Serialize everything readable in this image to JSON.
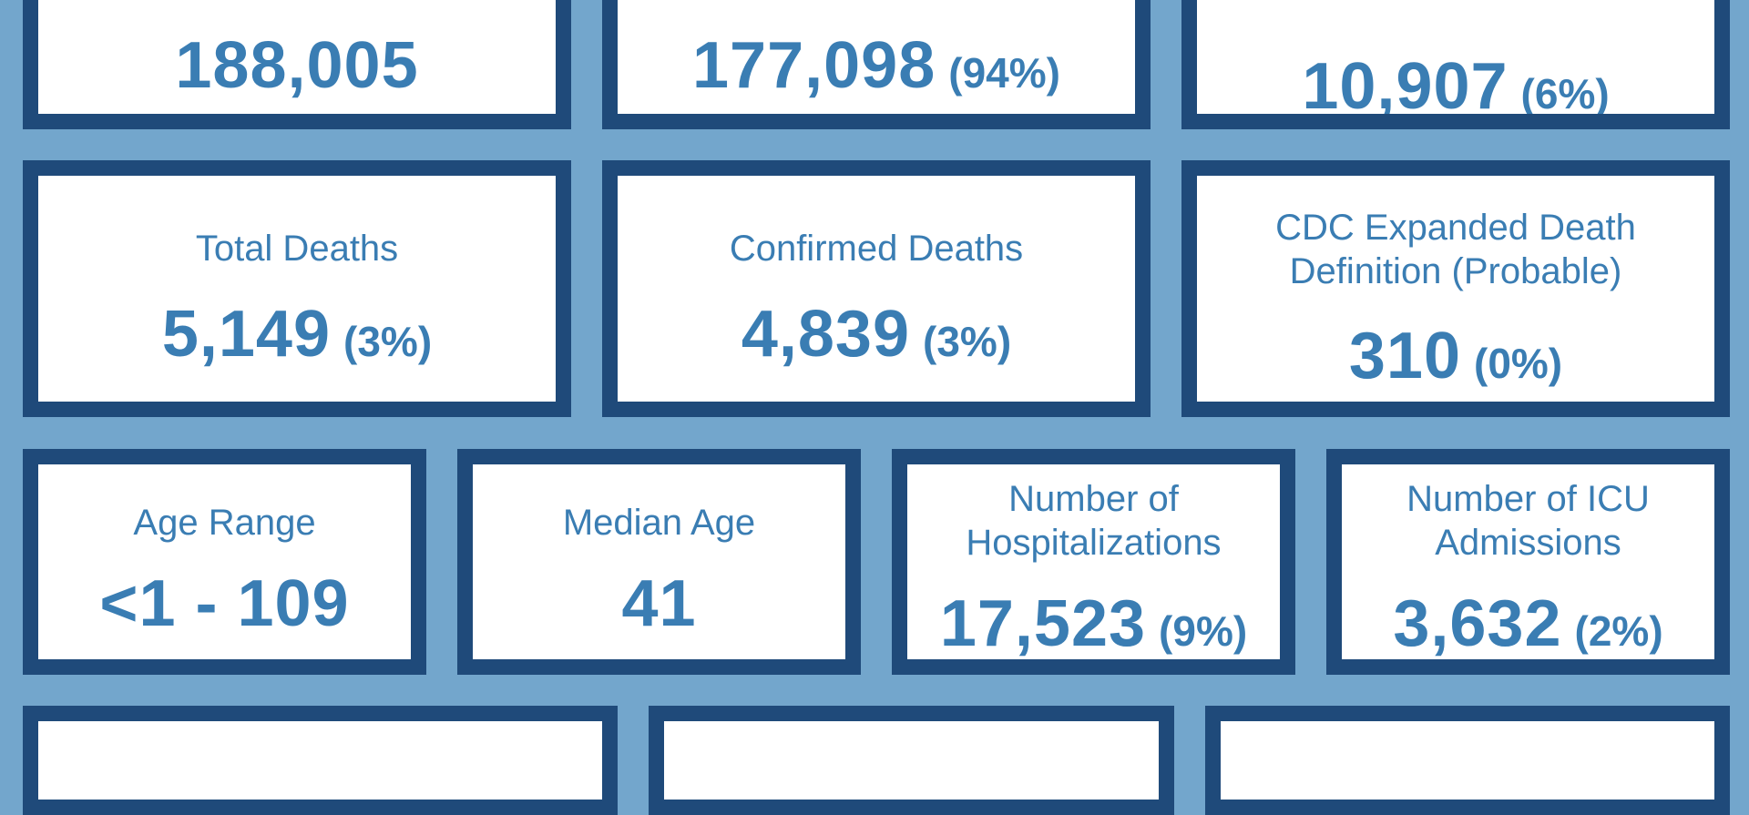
{
  "colors": {
    "background": "#73a6cc",
    "card_border": "#1f4a7a",
    "card_fill": "#ffffff",
    "text": "#3a7db3"
  },
  "row1": {
    "total_cases": {
      "value": "188,005"
    },
    "confirmed_cases": {
      "value": "177,098",
      "percent": "(94%)"
    },
    "probable_cases": {
      "value": "10,907",
      "percent": "(6%)"
    }
  },
  "row2": {
    "total_deaths": {
      "label": "Total Deaths",
      "value": "5,149",
      "percent": "(3%)"
    },
    "confirmed_deaths": {
      "label": "Confirmed Deaths",
      "value": "4,839",
      "percent": "(3%)"
    },
    "probable_deaths": {
      "label_line1": "CDC Expanded Death",
      "label_line2": "Definition (Probable)",
      "value": "310",
      "percent": "(0%)"
    }
  },
  "row3": {
    "age_range": {
      "label": "Age Range",
      "value": "<1 - 109"
    },
    "median_age": {
      "label": "Median Age",
      "value": "41"
    },
    "hospitalizations": {
      "label_line1": "Number of",
      "label_line2": "Hospitalizations",
      "value": "17,523",
      "percent": "(9%)"
    },
    "icu_admissions": {
      "label_line1": "Number of ICU",
      "label_line2": "Admissions",
      "value": "3,632",
      "percent": "(2%)"
    }
  }
}
